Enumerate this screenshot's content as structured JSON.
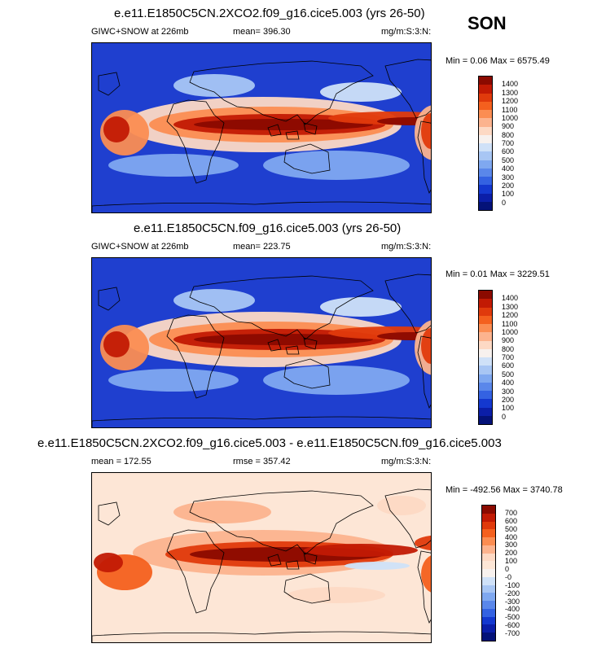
{
  "season": "SON",
  "panels": [
    {
      "title": "e.e11.E1850C5CN.2XCO2.f09_g16.cice5.003 (yrs 26-50)",
      "left_label": "GIWC+SNOW at 226mb",
      "mid_label": "mean= 396.30",
      "right_label": "mg/m:S:3:N:",
      "minmax": "Min =   0.06 Max = 6575.49",
      "levels": [
        "1400",
        "1300",
        "1200",
        "1100",
        "1000",
        "900",
        "800",
        "700",
        "600",
        "500",
        "400",
        "300",
        "200",
        "100",
        "0"
      ],
      "colors": [
        "#8b0a00",
        "#c21a04",
        "#e03a0c",
        "#f4601e",
        "#fb8d52",
        "#fcb38e",
        "#fdd9c4",
        "#f7f1ee",
        "#cfe1f8",
        "#a8c6f4",
        "#7fa8f0",
        "#5a87ea",
        "#3462e2",
        "#1438cf",
        "#0b1ea8",
        "#041278"
      ],
      "ocean": "#1f3fcf"
    },
    {
      "title": "e.e11.E1850C5CN.f09_g16.cice5.003 (yrs 26-50)",
      "left_label": "GIWC+SNOW at 226mb",
      "mid_label": "mean= 223.75",
      "right_label": "mg/m:S:3:N:",
      "minmax": "Min =   0.01 Max = 3229.51",
      "levels": [
        "1400",
        "1300",
        "1200",
        "1100",
        "1000",
        "900",
        "800",
        "700",
        "600",
        "500",
        "400",
        "300",
        "200",
        "100",
        "0"
      ],
      "colors": [
        "#8b0a00",
        "#c21a04",
        "#e03a0c",
        "#f4601e",
        "#fb8d52",
        "#fcb38e",
        "#fdd9c4",
        "#f7f1ee",
        "#cfe1f8",
        "#a8c6f4",
        "#7fa8f0",
        "#5a87ea",
        "#3462e2",
        "#1438cf",
        "#0b1ea8",
        "#041278"
      ],
      "ocean": "#1f3fcf"
    },
    {
      "title": "e.e11.E1850C5CN.2XCO2.f09_g16.cice5.003 - e.e11.E1850C5CN.f09_g16.cice5.003",
      "left_label": "mean = 172.55",
      "mid_label": "rmse = 357.42",
      "right_label": "mg/m:S:3:N:",
      "minmax": "Min = -492.56 Max = 3740.78",
      "levels": [
        "700",
        "600",
        "500",
        "400",
        "300",
        "200",
        "100",
        "0",
        "-0",
        "-100",
        "-200",
        "-300",
        "-400",
        "-500",
        "-600",
        "-700"
      ],
      "colors": [
        "#8b0a00",
        "#c21a04",
        "#e03a0c",
        "#f4601e",
        "#fb8d52",
        "#fcb38e",
        "#fdd9c4",
        "#fde6d6",
        "#f7f1ee",
        "#cfe1f8",
        "#a8c6f4",
        "#7fa8f0",
        "#5a87ea",
        "#3462e2",
        "#1438cf",
        "#0b1ea8",
        "#041278"
      ],
      "ocean": "#fde6d6"
    }
  ]
}
